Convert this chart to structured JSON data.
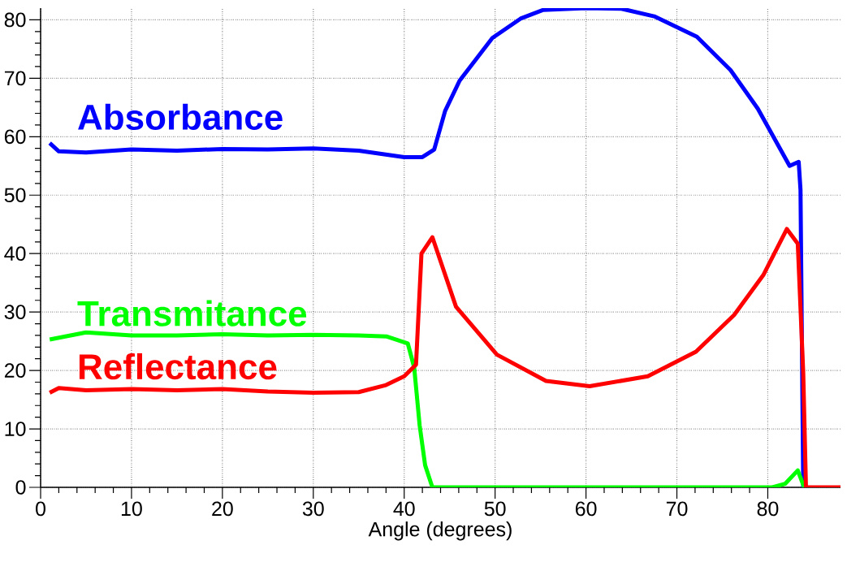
{
  "chart_data": {
    "type": "line",
    "xlabel": "Angle (degrees)",
    "xlim": [
      0,
      88
    ],
    "ylim": [
      0,
      82
    ],
    "xticks": [
      0,
      10,
      20,
      30,
      40,
      50,
      60,
      70,
      80
    ],
    "yticks": [
      0,
      10,
      20,
      30,
      40,
      50,
      60,
      70,
      80
    ],
    "grid": true,
    "series": [
      {
        "name": "Absorbance",
        "color": "#0000ff",
        "x": [
          1,
          2,
          5,
          10,
          15,
          20,
          25,
          30,
          35,
          40,
          42,
          43.3,
          44.5,
          46.1,
          49.7,
          52.8,
          55.3,
          60,
          63.9,
          67.5,
          72.2,
          75.9,
          78.9,
          82.4,
          83.4,
          83.6,
          83.9
        ],
        "values": [
          58.9,
          57.5,
          57.3,
          57.8,
          57.6,
          57.9,
          57.8,
          58,
          57.6,
          56.5,
          56.5,
          57.8,
          64.4,
          69.6,
          76.9,
          80.2,
          81.7,
          82,
          81.9,
          80.6,
          77.1,
          71.4,
          64.8,
          55,
          55.7,
          50.9,
          0
        ]
      },
      {
        "name": "Transmitance",
        "color": "#00ff00",
        "x": [
          1,
          5,
          10,
          15,
          20,
          25,
          30,
          35,
          38.1,
          40.4,
          41.1,
          41.7,
          42.3,
          43.1,
          60,
          80.5,
          81.9,
          83.3,
          84
        ],
        "values": [
          25.3,
          26.5,
          26,
          26,
          26.2,
          26,
          26.1,
          26,
          25.8,
          24.6,
          20.5,
          10.6,
          3.8,
          0,
          0,
          0,
          0.6,
          2.9,
          0
        ]
      },
      {
        "name": "Reflectance",
        "color": "#ff0000",
        "x": [
          1,
          2,
          5,
          10,
          15,
          20,
          25,
          30,
          35,
          38,
          40,
          41.3,
          41.9,
          43.1,
          45.7,
          50.2,
          55.6,
          60.4,
          66.8,
          72.1,
          76.3,
          79.5,
          82.1,
          83.3,
          83.9,
          84.2,
          88
        ],
        "values": [
          16.2,
          17,
          16.6,
          16.8,
          16.6,
          16.8,
          16.4,
          16.2,
          16.3,
          17.5,
          19,
          21,
          40,
          42.8,
          30.9,
          22.7,
          18.2,
          17.3,
          19,
          23.2,
          29.5,
          36.3,
          44.2,
          41.7,
          19.6,
          0,
          0
        ]
      }
    ]
  }
}
